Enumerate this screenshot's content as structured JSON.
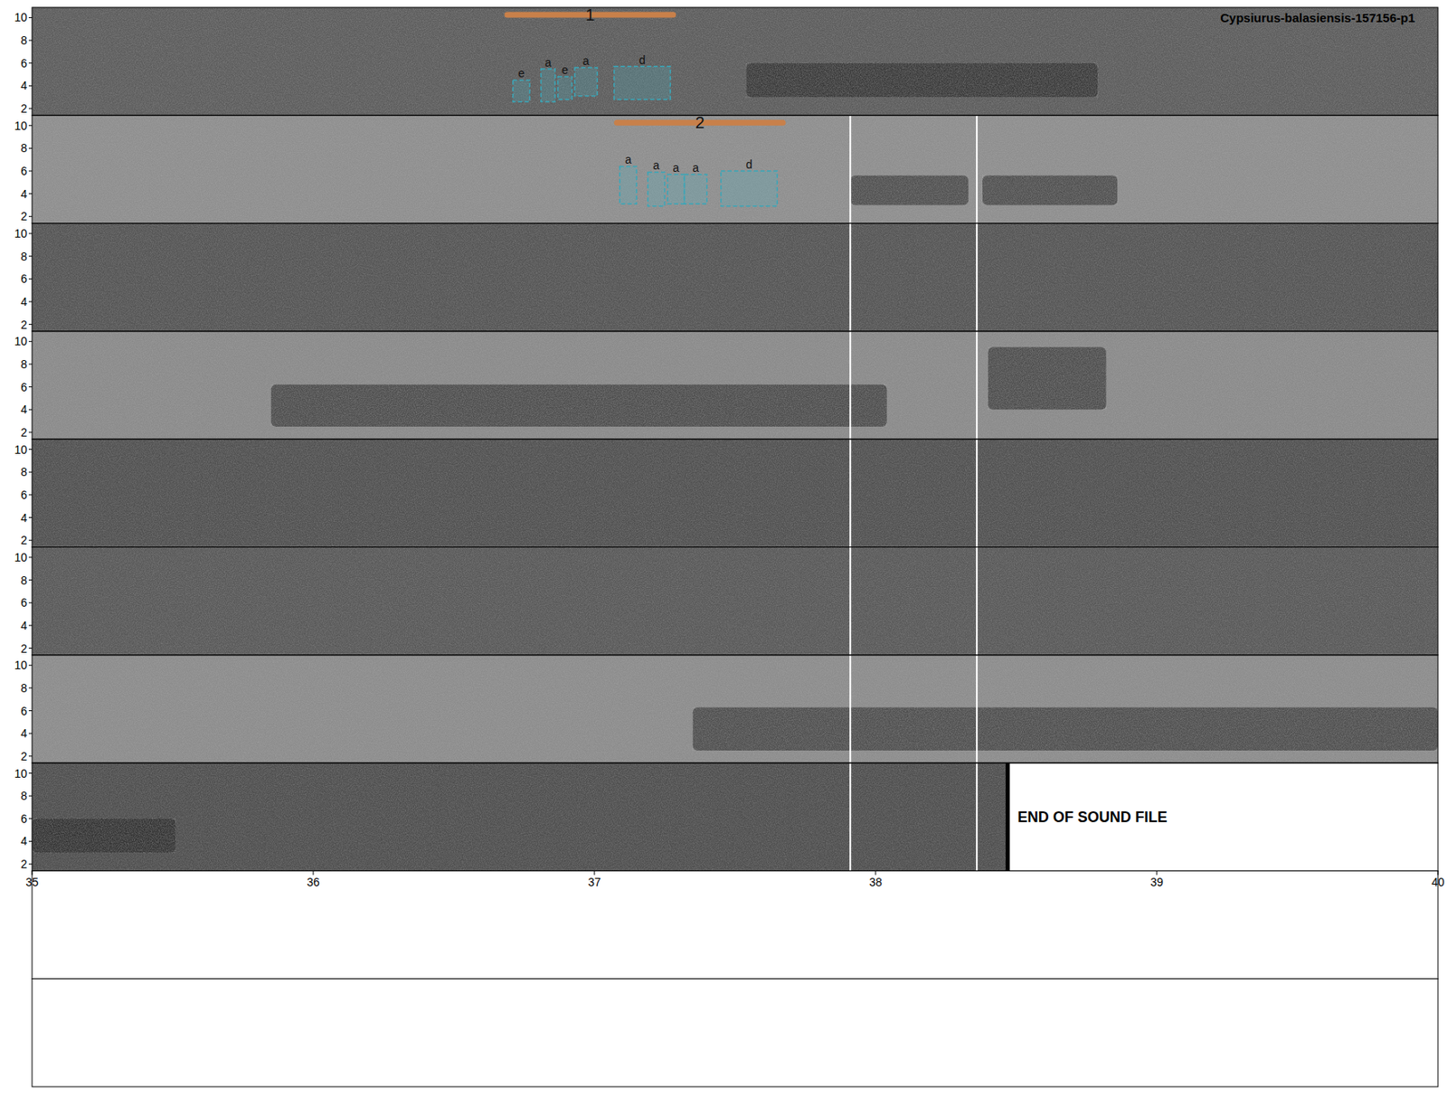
{
  "chart_data": {
    "type": "spectrogram",
    "title": "Cypsiurus-balasiensis-157156-p1",
    "rows": [
      {
        "xlim": [
          0,
          5
        ],
        "shade": "#5c5c5c"
      },
      {
        "xlim": [
          5,
          10
        ],
        "shade": "#8e8e8e"
      },
      {
        "xlim": [
          10,
          15
        ],
        "shade": "#545454"
      },
      {
        "xlim": [
          15,
          20
        ],
        "shade": "#8a8a8a"
      },
      {
        "xlim": [
          20,
          25
        ],
        "shade": "#505050"
      },
      {
        "xlim": [
          25,
          30
        ],
        "shade": "#585858"
      },
      {
        "xlim": [
          30,
          35
        ],
        "shade": "#8c8c8c"
      },
      {
        "xlim": [
          35,
          40
        ],
        "shade": "#4e4e4e"
      }
    ],
    "empty_rows": 2,
    "ylim": [
      1.4,
      10.9
    ],
    "yticks": [
      2,
      4,
      6,
      8,
      10
    ],
    "xticks": [
      35,
      36,
      37,
      38,
      39,
      40
    ],
    "calls": [
      {
        "start": 2.54,
        "end": 3.79,
        "fmin": 3.0,
        "fmax": 6.0
      },
      {
        "start": 7.91,
        "end": 8.33,
        "fmin": 3.0,
        "fmax": 5.6
      },
      {
        "start": 8.38,
        "end": 8.86,
        "fmin": 3.0,
        "fmax": 5.6
      },
      {
        "start": 15.85,
        "end": 18.04,
        "fmin": 2.5,
        "fmax": 6.2
      },
      {
        "start": 18.4,
        "end": 18.82,
        "fmin": 4.0,
        "fmax": 9.5
      },
      {
        "start": 32.35,
        "end": 35.0,
        "fmin": 2.5,
        "fmax": 6.3
      },
      {
        "start": 35.0,
        "end": 35.51,
        "fmin": 3.0,
        "fmax": 6.0
      }
    ],
    "selections": [
      {
        "label": "1",
        "start": 1.69,
        "end": 2.28,
        "color": "#c8804a",
        "boxes": [
          {
            "label": "e",
            "start": 1.71,
            "end": 1.77,
            "fmin": 2.6,
            "fmax": 4.5
          },
          {
            "label": "a",
            "start": 1.81,
            "end": 1.86,
            "fmin": 2.6,
            "fmax": 5.5
          },
          {
            "label": "e",
            "start": 1.87,
            "end": 1.92,
            "fmin": 2.8,
            "fmax": 4.8
          },
          {
            "label": "a",
            "start": 1.93,
            "end": 2.01,
            "fmin": 3.1,
            "fmax": 5.6
          },
          {
            "label": "d",
            "start": 2.07,
            "end": 2.27,
            "fmin": 2.8,
            "fmax": 5.7
          }
        ]
      },
      {
        "label": "2",
        "start": 7.08,
        "end": 7.67,
        "color": "#c8804a",
        "boxes": [
          {
            "label": "a",
            "start": 7.09,
            "end": 7.15,
            "fmin": 3.1,
            "fmax": 6.4
          },
          {
            "label": "a",
            "start": 7.19,
            "end": 7.25,
            "fmin": 2.9,
            "fmax": 5.9
          },
          {
            "label": "a",
            "start": 7.26,
            "end": 7.32,
            "fmin": 3.1,
            "fmax": 5.7
          },
          {
            "label": "a",
            "start": 7.32,
            "end": 7.4,
            "fmin": 3.1,
            "fmax": 5.7
          },
          {
            "label": "d",
            "start": 7.45,
            "end": 7.65,
            "fmin": 2.9,
            "fmax": 6.0
          }
        ]
      }
    ],
    "cursors": {
      "offsets": [
        2.91,
        3.36
      ],
      "from_row": 1
    },
    "end_of_file": {
      "time": 38.47,
      "label": "END OF SOUND FILE"
    }
  }
}
